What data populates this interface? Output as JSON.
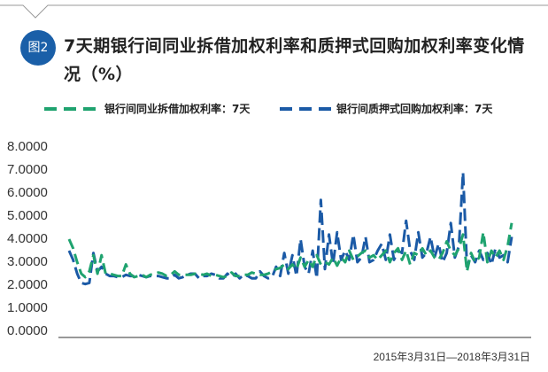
{
  "badge": "图2",
  "title": "7天期银行间同业拆借加权利率和质押式回购加权利率变化情况（%）",
  "note": "2015年3月31日—2018年3月31日",
  "colors": {
    "series1": "#1fa36f",
    "series2": "#1b5aa6",
    "badge": "#1a5fa8",
    "axis": "#333333"
  },
  "chart_data": {
    "type": "line",
    "title": "7天期银行间同业拆借加权利率和质押式回购加权利率变化情况（%）",
    "xlabel": "",
    "ylabel": "",
    "ylim": [
      0,
      8
    ],
    "yticks": [
      "0.0000",
      "1.0000",
      "2.0000",
      "3.0000",
      "4.0000",
      "5.0000",
      "6.0000",
      "7.0000",
      "8.0000"
    ],
    "x_range": "2015年3月31日—2018年3月31日",
    "legend_position": "top",
    "grid": false,
    "series": [
      {
        "name": "银行间同业拆借加权利率：7天",
        "style": "dashed",
        "values": [
          4.0,
          3.6,
          3.0,
          2.5,
          2.35,
          2.6,
          3.3,
          2.5,
          3.3,
          2.5,
          2.5,
          2.45,
          2.4,
          2.4,
          2.9,
          2.5,
          2.35,
          2.4,
          2.45,
          2.35,
          2.45,
          2.5,
          2.55,
          2.5,
          2.4,
          2.45,
          2.6,
          2.45,
          2.45,
          2.45,
          2.45,
          2.5,
          2.5,
          2.45,
          2.5,
          2.4,
          2.45,
          2.4,
          2.35,
          2.4,
          2.55,
          2.4,
          2.4,
          2.45,
          2.45,
          2.55,
          2.5,
          2.45,
          2.45,
          2.5,
          2.6,
          2.7,
          2.75,
          2.9,
          2.7,
          2.9,
          2.7,
          3.2,
          2.8,
          3.1,
          2.8,
          3.3,
          2.9,
          3.0,
          2.9,
          3.2,
          2.85,
          3.2,
          3.0,
          3.5,
          3.1,
          3.25,
          3.4,
          3.5,
          3.2,
          3.3,
          3.1,
          3.3,
          3.5,
          3.0,
          3.4,
          3.6,
          3.1,
          3.5,
          2.9,
          3.4,
          3.3,
          3.6,
          3.3,
          3.5,
          3.2,
          3.1,
          3.4,
          3.9,
          3.5,
          3.3,
          3.6,
          4.2,
          2.6,
          3.4,
          3.0,
          3.2,
          4.3,
          3.0,
          3.5,
          3.2,
          3.5,
          3.1,
          3.7,
          4.7
        ]
      },
      {
        "name": "银行间质押式回购加权利率：7天",
        "style": "dashed",
        "values": [
          3.5,
          3.1,
          2.5,
          2.1,
          2.05,
          2.1,
          3.4,
          2.6,
          2.8,
          2.5,
          2.4,
          2.4,
          2.35,
          2.35,
          2.45,
          2.4,
          2.4,
          2.45,
          2.4,
          2.35,
          2.4,
          2.4,
          2.4,
          2.35,
          2.3,
          2.3,
          2.45,
          2.3,
          2.35,
          2.45,
          2.5,
          2.5,
          2.3,
          2.4,
          2.4,
          2.5,
          2.45,
          2.3,
          2.3,
          2.5,
          2.35,
          2.5,
          2.3,
          2.45,
          2.4,
          2.3,
          2.3,
          2.6,
          2.4,
          2.3,
          2.35,
          2.8,
          2.4,
          3.4,
          2.5,
          3.3,
          2.4,
          4.0,
          2.8,
          2.5,
          3.5,
          2.3,
          5.7,
          2.7,
          4.2,
          2.9,
          4.3,
          3.1,
          3.5,
          3.1,
          4.2,
          3.0,
          3.2,
          4.1,
          3.0,
          3.1,
          3.5,
          3.8,
          3.1,
          4.2,
          3.1,
          3.5,
          3.4,
          4.8,
          3.5,
          3.1,
          4.3,
          3.2,
          3.4,
          4.1,
          3.2,
          3.8,
          3.0,
          3.4,
          4.7,
          3.2,
          3.7,
          6.9,
          2.8,
          3.3,
          3.0,
          3.5,
          3.1,
          3.4,
          2.9,
          3.6,
          3.2,
          3.3,
          3.0,
          4.1
        ]
      }
    ]
  }
}
